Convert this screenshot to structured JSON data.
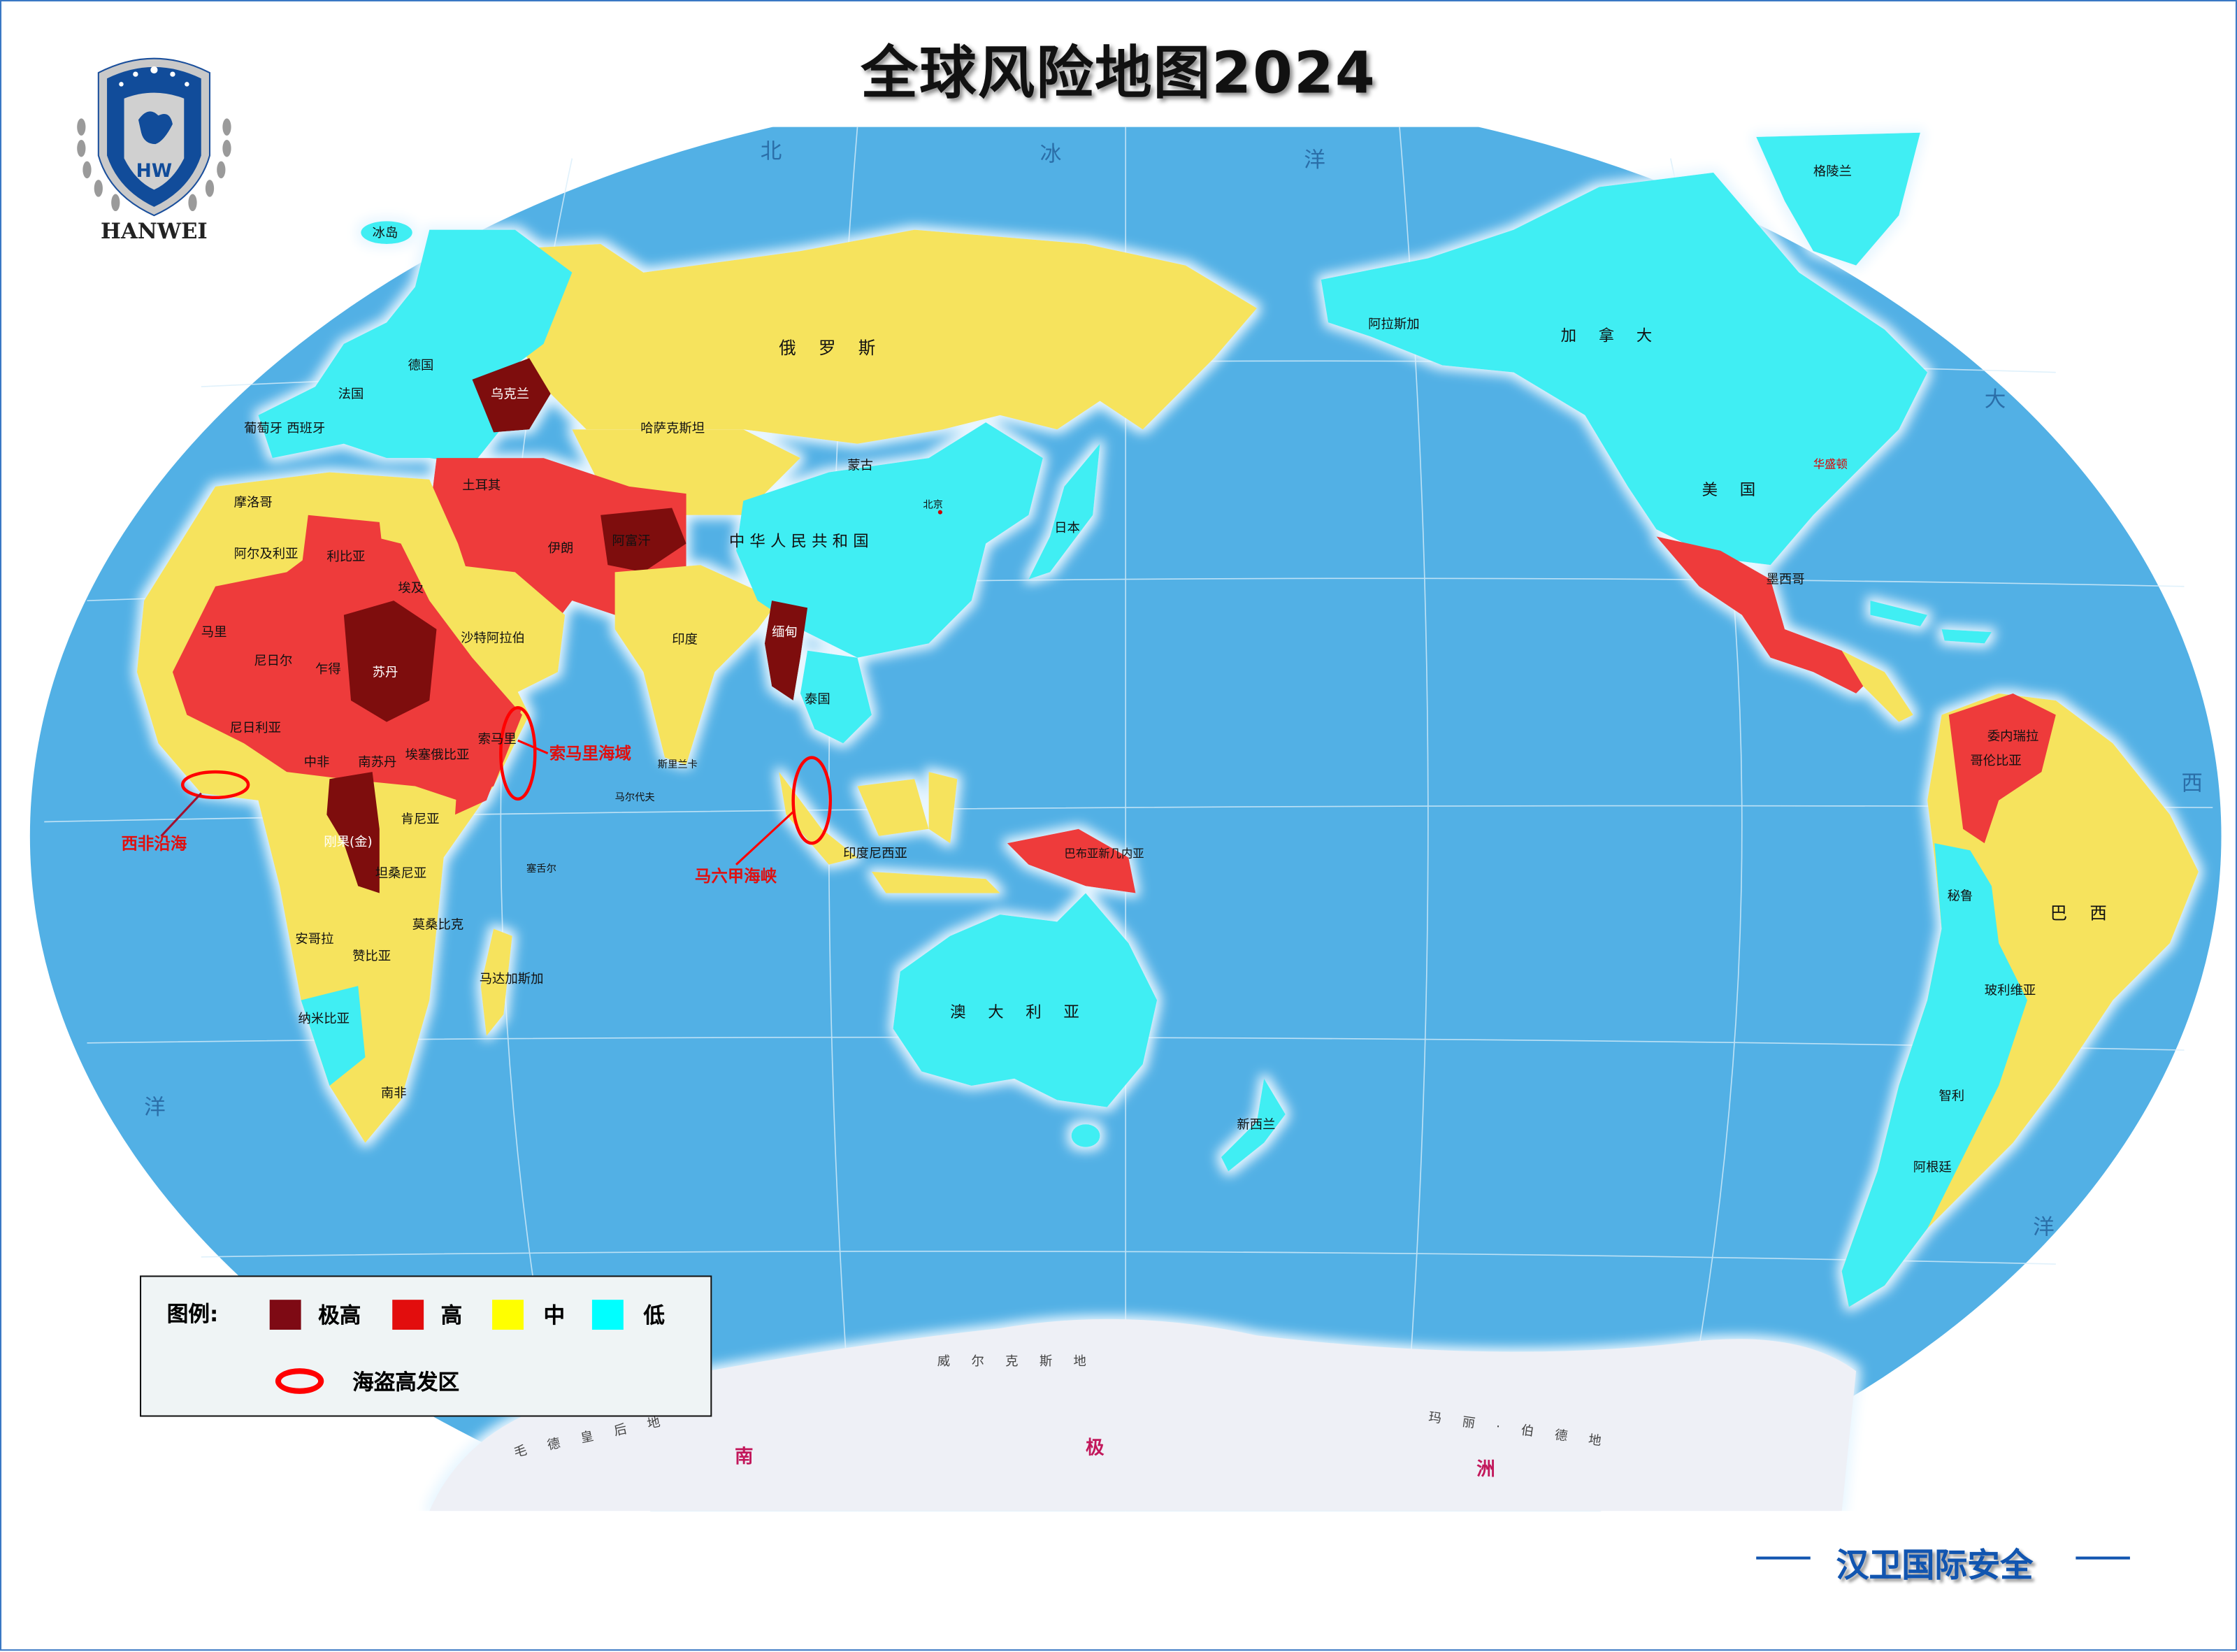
{
  "title": "全球风险地图2024",
  "logo": {
    "text": "HANWEI",
    "icon": "shield-tiger-globe-laurel-icon"
  },
  "footer": {
    "brand": "汉卫国际安全"
  },
  "colors": {
    "extreme": "#7e0a14",
    "high": "#e20d0d",
    "medium": "#ffff00",
    "low": "#00ffff",
    "ocean": "#52b0e5",
    "piracy": "#ff0000"
  },
  "legend": {
    "title": "图例:",
    "items": [
      {
        "label": "极高",
        "color": "#7e0a14"
      },
      {
        "label": "高",
        "color": "#e20d0d"
      },
      {
        "label": "中",
        "color": "#ffff00"
      },
      {
        "label": "低",
        "color": "#00ffff"
      }
    ],
    "piracy_label": "海盗高发区"
  },
  "piracy_zones": [
    "索马里海域",
    "西非沿海",
    "马六甲海峡"
  ],
  "countries": [
    {
      "name": "俄 罗 斯",
      "risk": "medium"
    },
    {
      "name": "哈萨克斯坦",
      "risk": "medium"
    },
    {
      "name": "蒙古",
      "risk": "medium"
    },
    {
      "name": "中 华 人 民 共 和 国",
      "risk": "low"
    },
    {
      "name": "印度",
      "risk": "medium"
    },
    {
      "name": "伊朗",
      "risk": "high"
    },
    {
      "name": "阿富汗",
      "risk": "extreme"
    },
    {
      "name": "沙特阿拉伯",
      "risk": "medium"
    },
    {
      "name": "土耳其",
      "risk": "high"
    },
    {
      "name": "乌克兰",
      "risk": "extreme"
    },
    {
      "name": "埃及",
      "risk": "medium"
    },
    {
      "name": "利比亚",
      "risk": "high"
    },
    {
      "name": "阿尔及利亚",
      "risk": "medium"
    },
    {
      "name": "马里",
      "risk": "high"
    },
    {
      "name": "尼日尔",
      "risk": "high"
    },
    {
      "name": "乍得",
      "risk": "high"
    },
    {
      "name": "苏丹",
      "risk": "extreme"
    },
    {
      "name": "尼日利亚",
      "risk": "high"
    },
    {
      "name": "中非",
      "risk": "high"
    },
    {
      "name": "南苏丹",
      "risk": "high"
    },
    {
      "name": "埃塞俄比亚",
      "risk": "high"
    },
    {
      "name": "索马里",
      "risk": "high"
    },
    {
      "name": "肯尼亚",
      "risk": "medium"
    },
    {
      "name": "坦桑尼亚",
      "risk": "medium"
    },
    {
      "name": "刚果(金)",
      "risk": "extreme"
    },
    {
      "name": "安哥拉",
      "risk": "medium"
    },
    {
      "name": "赞比亚",
      "risk": "medium"
    },
    {
      "name": "纳米比亚",
      "risk": "low"
    },
    {
      "name": "南非",
      "risk": "medium"
    },
    {
      "name": "马达加斯加",
      "risk": "medium"
    },
    {
      "name": "莫桑比克",
      "risk": "medium"
    },
    {
      "name": "泰国",
      "risk": "low"
    },
    {
      "name": "缅甸",
      "risk": "extreme"
    },
    {
      "name": "巴布亚新几内亚",
      "risk": "high"
    },
    {
      "name": "澳 大 利 亚",
      "risk": "low"
    },
    {
      "name": "新西兰",
      "risk": "low"
    },
    {
      "name": "加 拿 大",
      "risk": "low"
    },
    {
      "name": "美 国",
      "risk": "low"
    },
    {
      "name": "阿拉斯加",
      "risk": "low"
    },
    {
      "name": "墨西哥",
      "risk": "high"
    },
    {
      "name": "哥伦比亚",
      "risk": "high"
    },
    {
      "name": "委内瑞拉",
      "risk": "high"
    },
    {
      "name": "秘鲁",
      "risk": "low"
    },
    {
      "name": "巴 西",
      "risk": "medium"
    },
    {
      "name": "玻利维亚",
      "risk": "low"
    },
    {
      "name": "智利",
      "risk": "low"
    },
    {
      "name": "阿根廷",
      "risk": "low"
    },
    {
      "name": "格陵兰",
      "risk": "low"
    },
    {
      "name": "冰岛",
      "risk": "low"
    },
    {
      "name": "法国",
      "risk": "low"
    },
    {
      "name": "德国",
      "risk": "low"
    },
    {
      "name": "西班牙",
      "risk": "low"
    },
    {
      "name": "葡萄牙",
      "risk": "low"
    },
    {
      "name": "摩洛哥",
      "risk": "medium"
    },
    {
      "name": "印度尼西亚",
      "risk": "medium"
    },
    {
      "name": "日本",
      "risk": "low"
    }
  ],
  "places": [
    "北京",
    "华盛顿",
    "斯里兰卡",
    "马尔代夫",
    "塞舌尔"
  ],
  "oceans": [
    "北",
    "冰",
    "洋",
    "大",
    "西",
    "洋",
    "洋"
  ],
  "antarctica": {
    "name_chars": [
      "南",
      "极",
      "洲"
    ],
    "regions": [
      "威 尔 克 斯 地",
      "毛 德 皇 后 地",
      "玛 丽 · 伯 德 地"
    ]
  }
}
